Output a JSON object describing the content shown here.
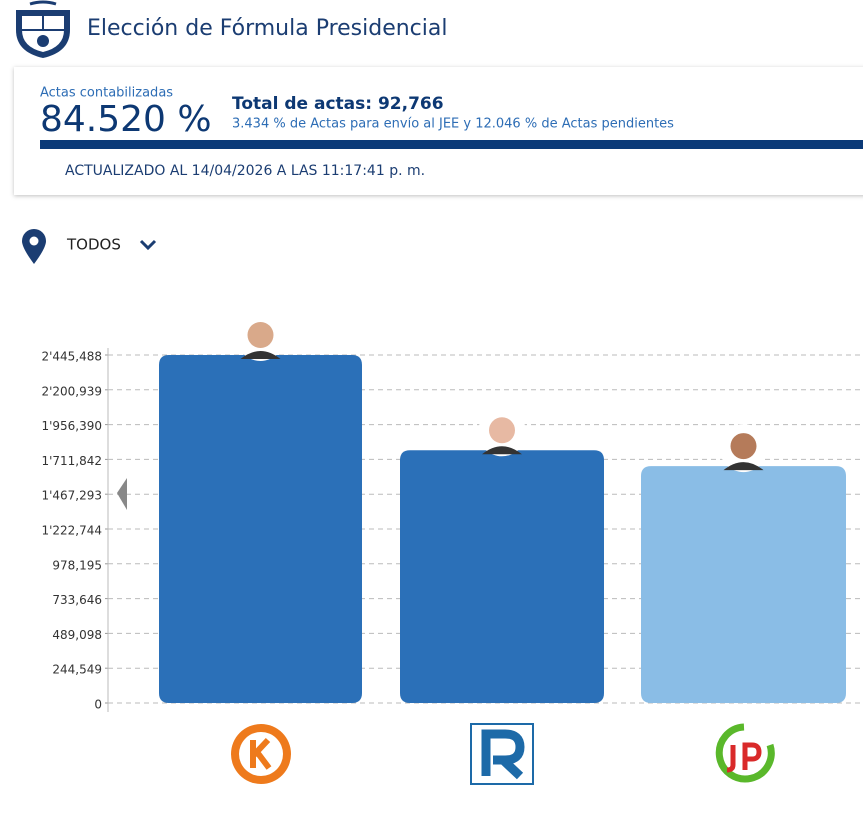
{
  "header": {
    "title": "Elección de Fórmula Presidencial"
  },
  "summary": {
    "actas_label": "Actas contabilizadas",
    "actas_percent": "84.520 %",
    "total": "Total de actas: 92,766",
    "detail": "3.434 % de Actas para envío al JEE y 12.046 % de Actas pendientes",
    "updated": "ACTUALIZADO AL 14/04/2026 A LAS 11:17:41 p. m."
  },
  "filter": {
    "label": "TODOS"
  },
  "chart_data": {
    "type": "bar",
    "categories": [
      null,
      null,
      null
    ],
    "values": [
      2445488,
      1776000,
      1665000
    ],
    "colors": [
      "#2b70b8",
      "#2b70b8",
      "#8abde6"
    ],
    "ylim": [
      0,
      2445488
    ],
    "yticks": [
      0,
      {
        "value": 244549,
        "label": "244,549"
      },
      {
        "value": 489098,
        "label": "489,098"
      },
      {
        "value": 733646,
        "label": "733,646"
      },
      {
        "value": 978195,
        "label": "978,195"
      },
      {
        "value": 1222744,
        "label": "1'222,744"
      },
      {
        "value": 1467293,
        "label": "1'467,293"
      },
      {
        "value": 1711842,
        "label": "1'711,842"
      },
      {
        "value": 1956390,
        "label": "1'956,390"
      },
      {
        "value": 2200939,
        "label": "2'200,939"
      },
      {
        "value": 2445488,
        "label": "2'445,488"
      }
    ],
    "grid": true
  }
}
